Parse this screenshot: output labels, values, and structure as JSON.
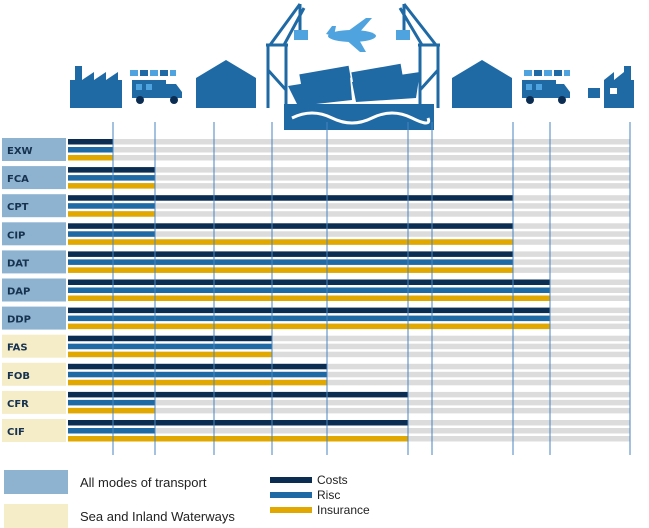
{
  "chart_data": {
    "type": "bar",
    "orientation": "horizontal",
    "title": "",
    "xlabel": "",
    "ylabel": "",
    "categories": [
      "EXW",
      "FCA",
      "CPT",
      "CIP",
      "DAT",
      "DAP",
      "DDP",
      "FAS",
      "FOB",
      "CFR",
      "CIF"
    ],
    "category_groups": {
      "all_modes": [
        "EXW",
        "FCA",
        "CPT",
        "CIP",
        "DAT",
        "DAP",
        "DDP"
      ],
      "sea_inland": [
        "FAS",
        "FOB",
        "CFR",
        "CIF"
      ]
    },
    "stage_count": 10,
    "xlim": [
      0,
      10
    ],
    "grid": true,
    "series": [
      {
        "name": "Costs",
        "color": "#0b2d52",
        "values": [
          1,
          2,
          8,
          8,
          8,
          9,
          9,
          4,
          5,
          6,
          6
        ]
      },
      {
        "name": "Risc",
        "color": "#1f6aa5",
        "values": [
          1,
          2,
          2,
          2,
          8,
          9,
          9,
          4,
          5,
          2,
          2
        ]
      },
      {
        "name": "Insurance",
        "color": "#e0a800",
        "values": [
          1,
          2,
          2,
          8,
          8,
          9,
          9,
          4,
          5,
          2,
          6
        ]
      }
    ],
    "legend": {
      "placement": "bottom",
      "groups": [
        {
          "label": "All modes of transport",
          "color": "#8db3d1"
        },
        {
          "label": "Sea and Inland Waterways",
          "color": "#f5ecc8"
        }
      ]
    }
  },
  "colors": {
    "track": "#dcdcdc",
    "gridline": "#4a86bf",
    "scene": "#1f6aa5",
    "scene_light": "#4fa3de",
    "label_text": "#16324f"
  },
  "icons": [
    "factory-icon",
    "truck-icon",
    "warehouse-icon",
    "crane-icon",
    "container-ship-icon",
    "airplane-icon",
    "waves-icon"
  ]
}
